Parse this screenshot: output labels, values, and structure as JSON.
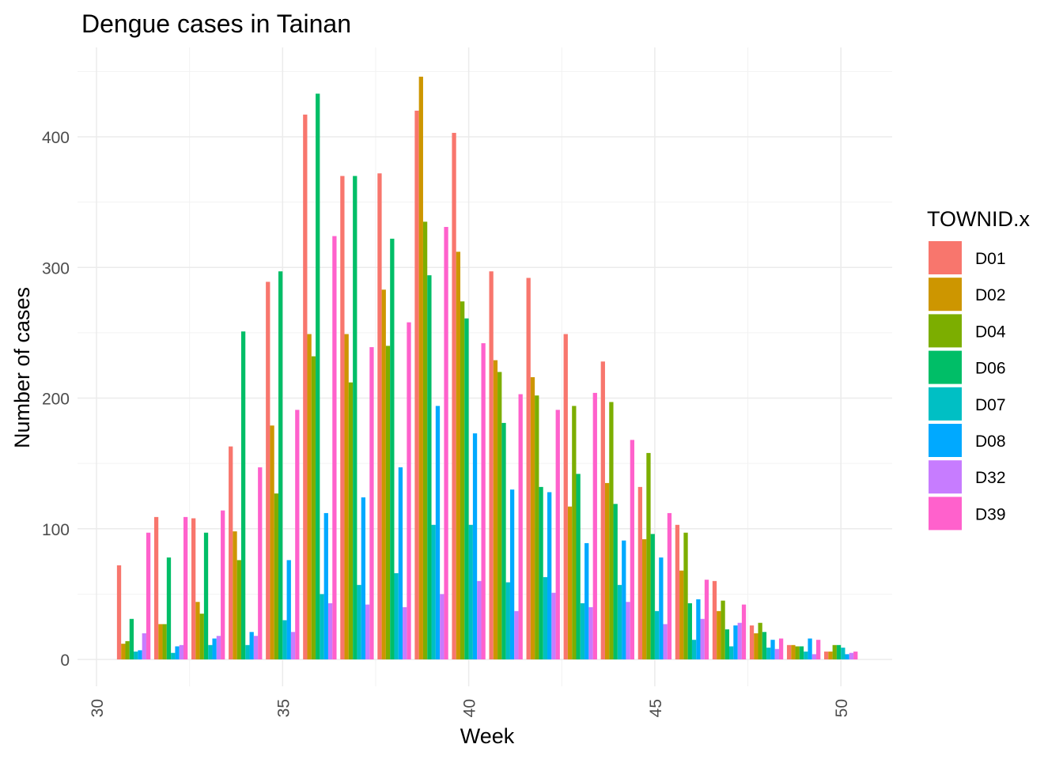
{
  "chart_data": {
    "type": "bar",
    "title": "Dengue cases in Tainan",
    "xlabel": "Week",
    "ylabel": "Number of cases",
    "xlim": [
      30,
      51
    ],
    "ylim": [
      -10,
      450
    ],
    "x_ticks": [
      30,
      35,
      40,
      45,
      50
    ],
    "y_ticks": [
      0,
      100,
      200,
      300,
      400
    ],
    "grid": true,
    "legend": {
      "title": "TOWNID.x",
      "position": "right"
    },
    "x": [
      31,
      32,
      33,
      34,
      35,
      36,
      37,
      38,
      39,
      40,
      41,
      42,
      43,
      44,
      45,
      46,
      47,
      48,
      49,
      50
    ],
    "series": [
      {
        "name": "D01",
        "color": "#F8766D",
        "values": [
          72,
          109,
          108,
          163,
          289,
          417,
          370,
          372,
          420,
          403,
          297,
          292,
          249,
          228,
          132,
          103,
          60,
          26,
          11,
          6
        ]
      },
      {
        "name": "D02",
        "color": "#CD9600",
        "values": [
          12,
          27,
          44,
          98,
          179,
          249,
          249,
          283,
          446,
          312,
          229,
          216,
          117,
          135,
          92,
          68,
          37,
          20,
          11,
          6
        ]
      },
      {
        "name": "D04",
        "color": "#7CAE00",
        "values": [
          14,
          27,
          35,
          76,
          127,
          232,
          212,
          240,
          335,
          274,
          220,
          202,
          194,
          197,
          158,
          97,
          45,
          28,
          10,
          11
        ]
      },
      {
        "name": "D06",
        "color": "#00BE67",
        "values": [
          31,
          78,
          97,
          251,
          297,
          433,
          370,
          322,
          294,
          261,
          181,
          132,
          142,
          119,
          96,
          43,
          23,
          21,
          10,
          11
        ]
      },
      {
        "name": "D07",
        "color": "#00BFC4",
        "values": [
          6,
          5,
          11,
          11,
          30,
          50,
          57,
          66,
          103,
          103,
          59,
          63,
          43,
          57,
          37,
          15,
          10,
          9,
          6,
          9
        ]
      },
      {
        "name": "D08",
        "color": "#00A9FF",
        "values": [
          7,
          10,
          16,
          21,
          76,
          112,
          124,
          147,
          194,
          173,
          130,
          128,
          89,
          91,
          78,
          46,
          26,
          15,
          16,
          4
        ]
      },
      {
        "name": "D32",
        "color": "#C77CFF",
        "values": [
          20,
          11,
          18,
          18,
          21,
          43,
          42,
          40,
          50,
          60,
          37,
          51,
          40,
          44,
          27,
          31,
          28,
          8,
          4,
          5
        ]
      },
      {
        "name": "D39",
        "color": "#FF61CC",
        "values": [
          97,
          109,
          114,
          147,
          191,
          324,
          239,
          258,
          331,
          242,
          203,
          191,
          204,
          168,
          112,
          61,
          42,
          16,
          15,
          6
        ]
      }
    ]
  }
}
